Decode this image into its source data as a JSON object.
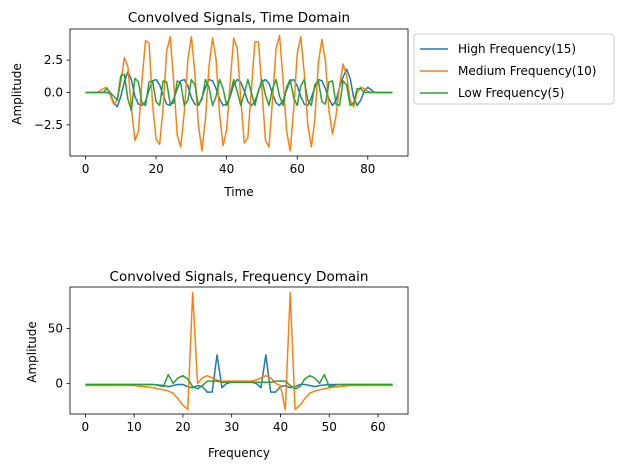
{
  "chart_data": [
    {
      "type": "line",
      "title": "Convolved Signals, Time Domain",
      "xlabel": "Time",
      "ylabel": "Amplitude",
      "xlim": [
        -4.4,
        91.4
      ],
      "ylim": [
        -4.9,
        4.9
      ],
      "xticks": [
        0,
        20,
        40,
        60,
        80
      ],
      "xtick_labels": [
        "0",
        "20",
        "40",
        "60",
        "80"
      ],
      "yticks": [
        2.5,
        0,
        -2.5
      ],
      "ytick_labels": [
        "2.5",
        "0.0",
        "−2.5"
      ],
      "legend": "outside-right",
      "x": [
        0,
        1,
        2,
        3,
        4,
        5,
        6,
        7,
        8,
        9,
        10,
        11,
        12,
        13,
        14,
        15,
        16,
        17,
        18,
        19,
        20,
        21,
        22,
        23,
        24,
        25,
        26,
        27,
        28,
        29,
        30,
        31,
        32,
        33,
        34,
        35,
        36,
        37,
        38,
        39,
        40,
        41,
        42,
        43,
        44,
        45,
        46,
        47,
        48,
        49,
        50,
        51,
        52,
        53,
        54,
        55,
        56,
        57,
        58,
        59,
        60,
        61,
        62,
        63,
        64,
        65,
        66,
        67,
        68,
        69,
        70,
        71,
        72,
        73,
        74,
        75,
        76,
        77,
        78,
        79,
        80,
        81,
        82,
        83,
        84,
        85,
        86,
        87
      ],
      "series": [
        {
          "name": "High Frequency(15)",
          "color": "#1f77b4",
          "values": [
            0,
            0,
            0,
            0,
            0,
            0,
            0,
            -0.1,
            -0.8,
            -1.1,
            -0.3,
            0.8,
            1.6,
            1.0,
            -0.3,
            -0.9,
            -1.0,
            -0.7,
            0.2,
            0.9,
            1.0,
            0.6,
            -0.2,
            -0.9,
            -1.0,
            -0.5,
            0.3,
            0.9,
            1.0,
            0.5,
            -0.4,
            -0.9,
            -1.0,
            -0.4,
            0.4,
            1.0,
            0.9,
            0.3,
            -0.5,
            -1.0,
            -0.9,
            -0.3,
            0.6,
            1.0,
            0.8,
            0.1,
            -0.7,
            -1.0,
            -0.7,
            0.1,
            0.8,
            1.0,
            0.7,
            -0.1,
            -0.8,
            -1.0,
            -0.6,
            0.2,
            0.9,
            1.0,
            0.5,
            -0.3,
            -0.9,
            -1.0,
            -0.4,
            0.4,
            1.0,
            0.9,
            0.3,
            -0.5,
            -1.0,
            -0.6,
            0.4,
            1.2,
            1.8,
            1.1,
            -0.4,
            -1.0,
            -0.6,
            0.1,
            0.4,
            0.2,
            0,
            0,
            0,
            0,
            0,
            0
          ]
        },
        {
          "name": "Medium Frequency(10)",
          "color": "#ff7f0e",
          "values": [
            0,
            0,
            0,
            0,
            0.1,
            0.3,
            0.4,
            -0.2,
            -0.9,
            -0.6,
            0.8,
            2.7,
            2.0,
            -1.2,
            -3.7,
            -3.0,
            0.9,
            4.0,
            3.8,
            -0.9,
            -3.6,
            -4.0,
            -1.2,
            3.2,
            4.3,
            0.8,
            -3.3,
            -4.2,
            -1.5,
            2.5,
            4.3,
            1.5,
            -2.5,
            -4.5,
            -2.0,
            2.0,
            4.2,
            2.6,
            -1.7,
            -4.1,
            -2.9,
            0.8,
            4.2,
            3.4,
            -0.5,
            -3.9,
            -3.5,
            0.2,
            3.9,
            3.9,
            0.3,
            -3.7,
            -4.2,
            -0.6,
            3.4,
            4.4,
            0.9,
            -3.0,
            -4.5,
            -1.3,
            3.0,
            4.3,
            1.5,
            -2.5,
            -4.2,
            -2.1,
            2.3,
            4.1,
            2.4,
            -1.4,
            -3.2,
            -1.8,
            0.5,
            2.2,
            1.3,
            -0.6,
            -1.1,
            0,
            0.4,
            0.3,
            0.1,
            0,
            0,
            0,
            0,
            0,
            0,
            0
          ]
        },
        {
          "name": "Low Frequency(5)",
          "color": "#2ca02c",
          "values": [
            0,
            0,
            0,
            0,
            0,
            0,
            0.3,
            0,
            -0.3,
            -0.6,
            1.3,
            1.4,
            -0.5,
            -1.4,
            1.1,
            0.8,
            -0.8,
            -1.0,
            0.8,
            0.9,
            -0.7,
            -1.0,
            0.9,
            0.8,
            -0.9,
            -0.8,
            0.9,
            0.7,
            -1.0,
            -0.6,
            1.0,
            0.6,
            -1.0,
            -0.5,
            1.0,
            0.4,
            -1.0,
            -0.3,
            1.0,
            0.3,
            -1.0,
            -0.2,
            1.0,
            0.1,
            -1.0,
            -0.1,
            1.0,
            0,
            -1.0,
            0.1,
            1.0,
            -0.2,
            -1.0,
            0.3,
            1.0,
            -0.3,
            -1.0,
            0.4,
            1.0,
            -0.4,
            -1.0,
            0.5,
            1.0,
            -0.6,
            -1.0,
            0.6,
            0.9,
            -0.7,
            -0.9,
            0.8,
            0.9,
            -0.9,
            -1.0,
            0.9,
            0.6,
            -1.0,
            -0.8,
            0.3,
            0.3,
            0,
            0,
            0,
            0,
            0,
            0,
            0,
            0,
            0
          ]
        }
      ]
    },
    {
      "type": "line",
      "title": "Convolved Signals, Frequency Domain",
      "xlabel": "Frequency",
      "ylabel": "Amplitude",
      "xlim": [
        -3.15,
        66.15
      ],
      "ylim": [
        -28,
        88
      ],
      "xticks": [
        0,
        10,
        20,
        30,
        40,
        50,
        60
      ],
      "xtick_labels": [
        "0",
        "10",
        "20",
        "30",
        "40",
        "50",
        "60"
      ],
      "yticks": [
        50,
        0
      ],
      "ytick_labels": [
        "50",
        "0"
      ],
      "x": [
        0,
        1,
        2,
        3,
        4,
        5,
        6,
        7,
        8,
        9,
        10,
        11,
        12,
        13,
        14,
        15,
        16,
        17,
        18,
        19,
        20,
        21,
        22,
        23,
        24,
        25,
        26,
        27,
        28,
        29,
        30,
        31,
        32,
        33,
        34,
        35,
        36,
        37,
        38,
        39,
        40,
        41,
        42,
        43,
        44,
        45,
        46,
        47,
        48,
        49,
        50,
        51,
        52,
        53,
        54,
        55,
        56,
        57,
        58,
        59,
        60,
        61,
        62,
        63
      ],
      "series": [
        {
          "name": "High Frequency(15)",
          "color": "#1f77b4",
          "values": [
            -1,
            -1,
            -1,
            -1,
            -1,
            -1,
            -1,
            -1,
            -1,
            -1,
            -1,
            -1,
            -1,
            -1,
            -1.2,
            -1.5,
            -2,
            -3,
            -2,
            -1,
            -1,
            -3,
            -4,
            -2,
            -3,
            -8,
            -8,
            26,
            -4,
            0,
            1,
            1,
            1,
            1,
            1,
            0,
            -4,
            26,
            -8,
            -8,
            -3,
            -2,
            -4,
            -3,
            -1,
            -1,
            -2,
            -3,
            -2,
            -1.5,
            -1.2,
            -1,
            -1,
            -1,
            -1,
            -1,
            -1,
            -1,
            -1,
            -1,
            -1,
            -1,
            -1,
            -1
          ]
        },
        {
          "name": "Medium Frequency(10)",
          "color": "#ff7f0e",
          "values": [
            -2,
            -2,
            -2,
            -2,
            -2,
            -2,
            -2,
            -2,
            -2,
            -2,
            -2,
            -2.5,
            -3,
            -3.5,
            -4,
            -5,
            -6,
            -7,
            -9,
            -14,
            -20,
            -24,
            83,
            0,
            5,
            7,
            5,
            3,
            2,
            2,
            2,
            2,
            2,
            2,
            2,
            3,
            5,
            7,
            5,
            0,
            -2,
            -24,
            83,
            -24,
            -20,
            -14,
            -9,
            -7,
            -6,
            -5,
            -4,
            -3.5,
            -3,
            -2.5,
            -2,
            -2,
            -2,
            -2,
            -2,
            -2,
            -2,
            -2,
            -2,
            -2
          ]
        },
        {
          "name": "Low Frequency(5)",
          "color": "#2ca02c",
          "values": [
            -1,
            -1,
            -1,
            -1,
            -1,
            -1,
            -1,
            -1,
            -1,
            -1,
            -1,
            -1,
            -1,
            -1,
            -1,
            -2,
            -3,
            8,
            0,
            5,
            7,
            4,
            -3,
            -5,
            -2,
            2,
            2,
            2,
            1,
            1,
            1,
            1,
            1,
            1,
            1,
            1,
            1,
            1,
            1,
            2,
            2,
            2,
            -2,
            -5,
            -3,
            4,
            7,
            5,
            0,
            8,
            -3,
            -2,
            -1,
            -1,
            -1,
            -1,
            -1,
            -1,
            -1,
            -1,
            -1,
            -1,
            -1,
            -1
          ]
        }
      ]
    }
  ]
}
